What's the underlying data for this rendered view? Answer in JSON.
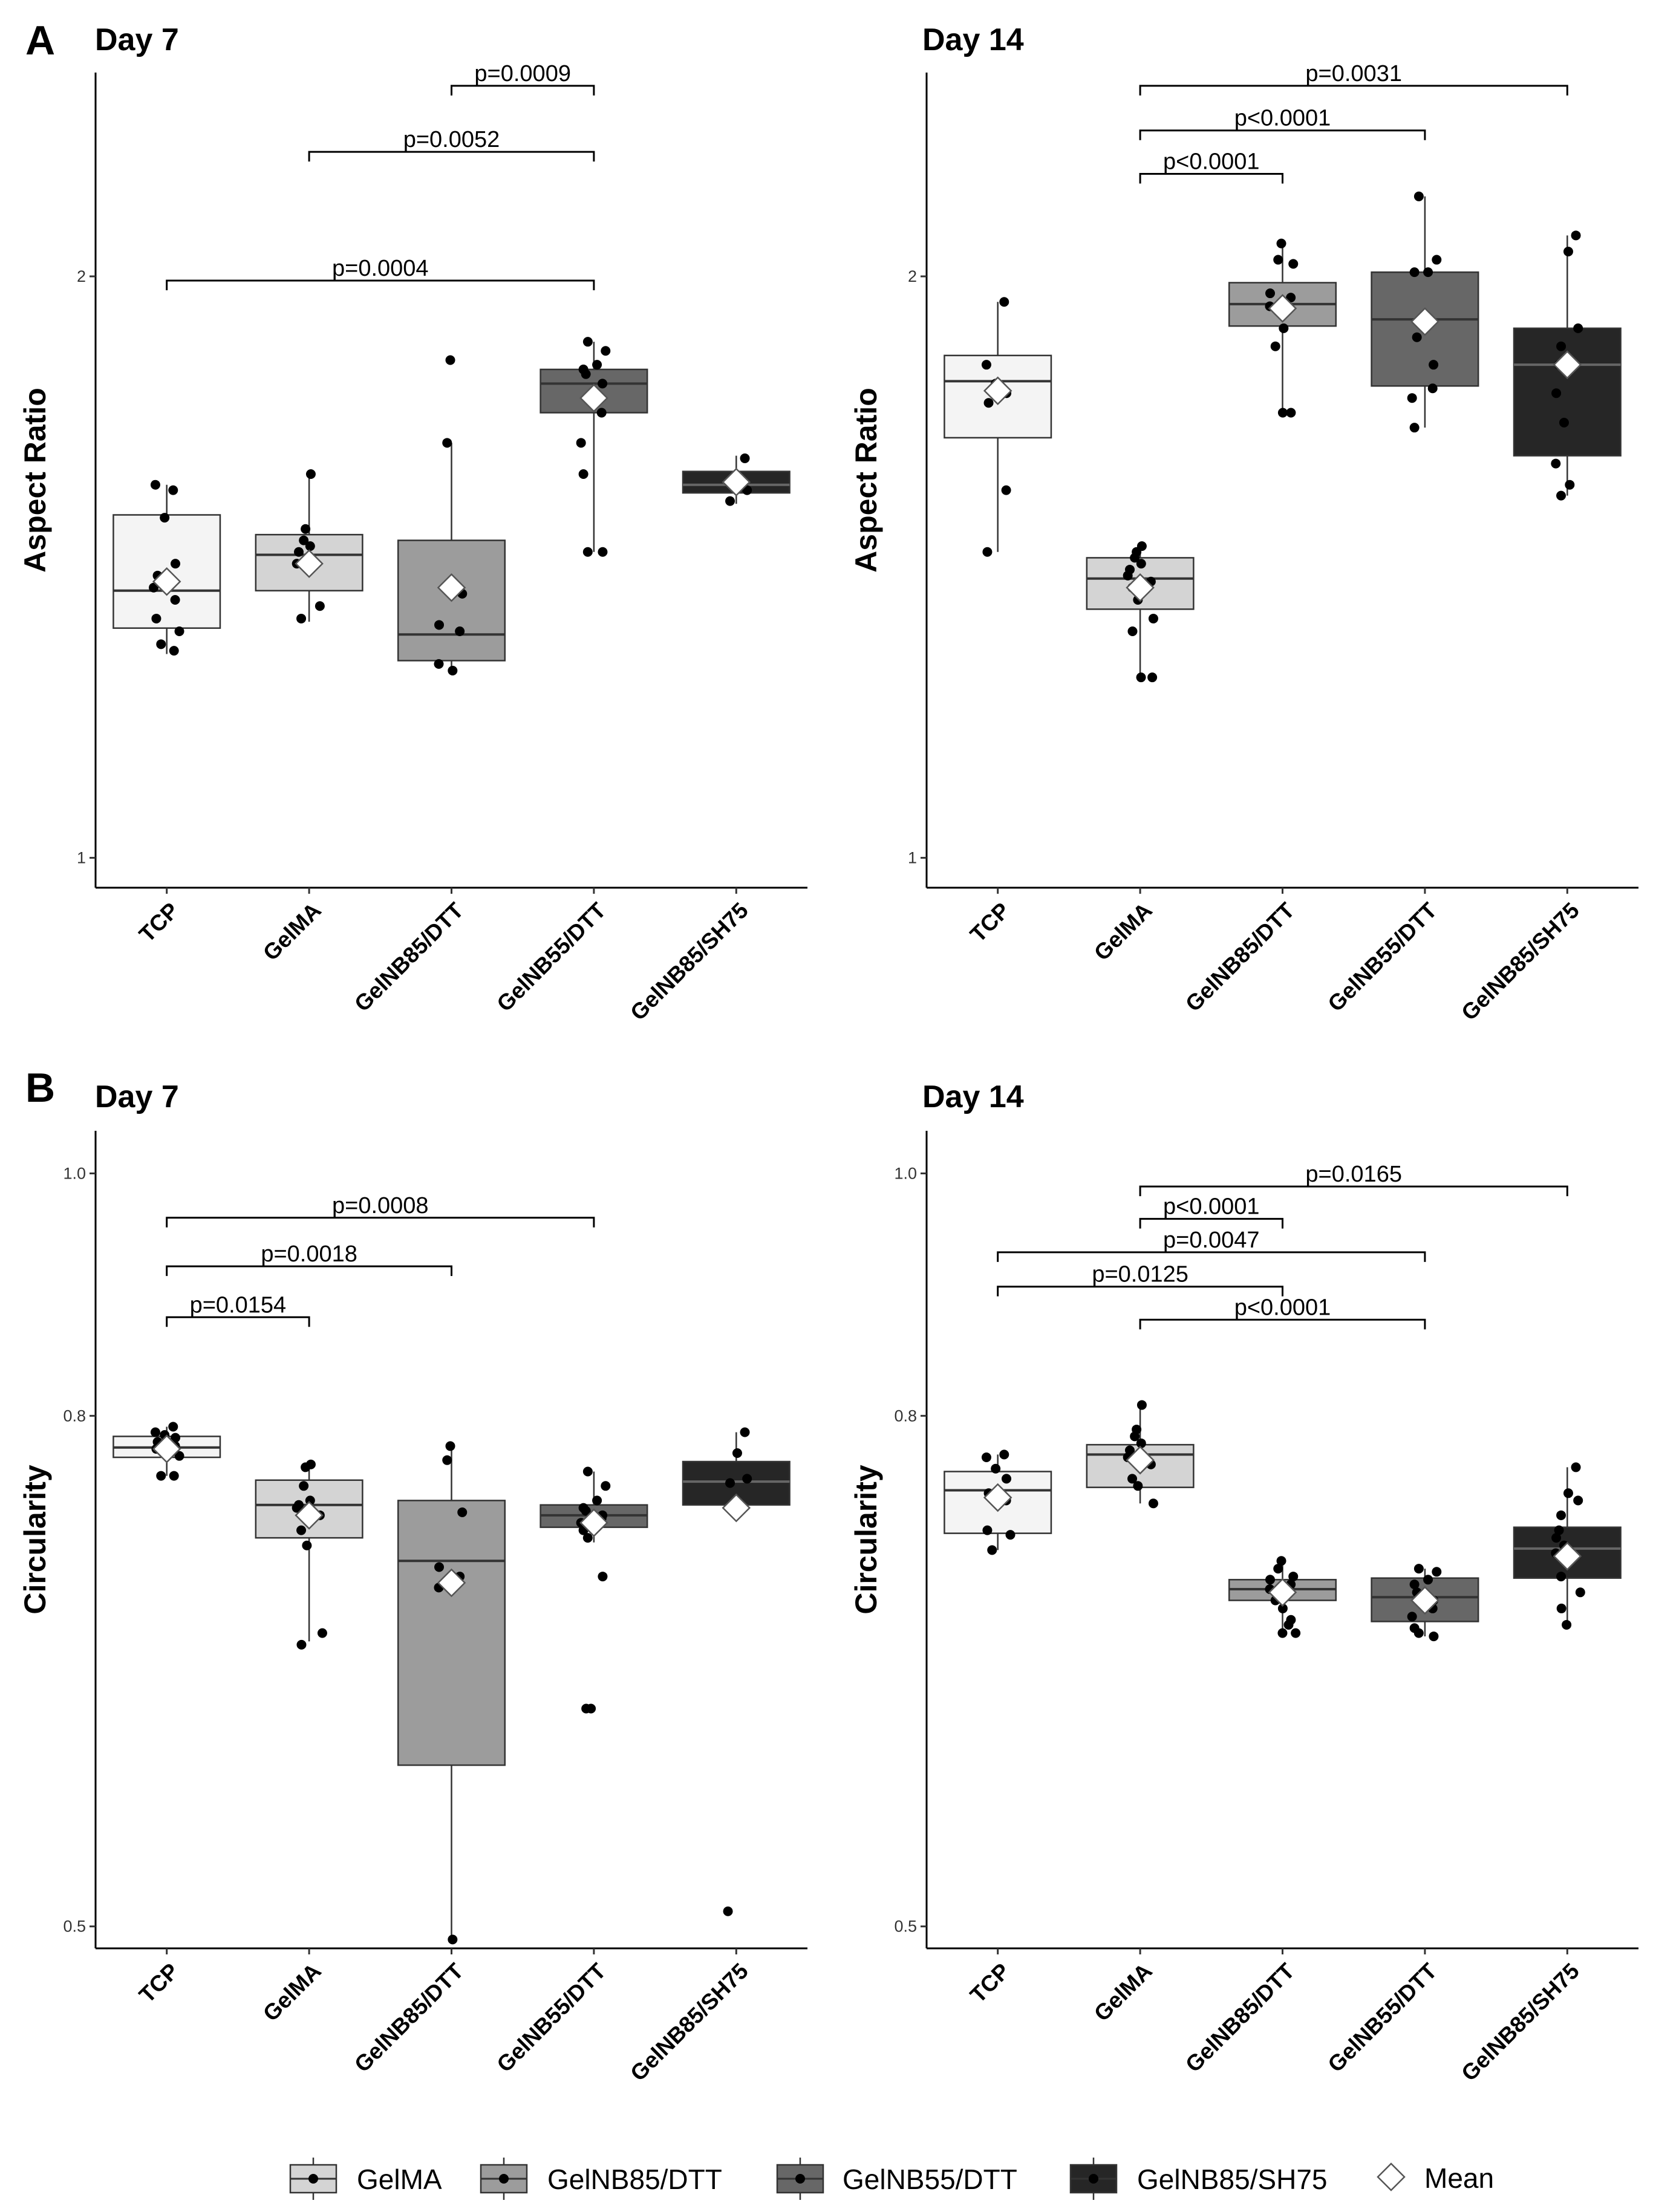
{
  "figure": {
    "panels": [
      {
        "letter": "A"
      },
      {
        "letter": "B"
      }
    ]
  },
  "legend": {
    "entries": [
      {
        "label": "GelMA",
        "fill": "#d4d4d4"
      },
      {
        "label": "GelNB85/DTT",
        "fill": "#9c9c9c"
      },
      {
        "label": "GelNB55/DTT",
        "fill": "#676767"
      },
      {
        "label": "GelNB85/SH75",
        "fill": "#262626"
      }
    ],
    "mean_label": "Mean"
  },
  "chart_data": [
    {
      "type": "box",
      "panel": "A",
      "title": "Day 7",
      "ylabel": "Aspect Ratio",
      "xlabel": "",
      "scale": "log",
      "ylim": [
        0.965,
        2.55
      ],
      "yticks": [
        1,
        2
      ],
      "ytick_labels": [
        "1",
        "2"
      ],
      "categories": [
        "TCP",
        "GelMA",
        "GelNB85/DTT",
        "GelNB55/DTT",
        "GelNB85/SH75"
      ],
      "fills": [
        "#f4f4f4",
        "#d4d4d4",
        "#9c9c9c",
        "#676767",
        "#262626"
      ],
      "boxes": [
        {
          "q1": 1.315,
          "median": 1.375,
          "q3": 1.505,
          "whisker_low": 1.275,
          "whisker_high": 1.56,
          "mean": 1.39
        },
        {
          "q1": 1.375,
          "median": 1.435,
          "q3": 1.47,
          "whisker_low": 1.325,
          "whisker_high": 1.58,
          "mean": 1.42
        },
        {
          "q1": 1.265,
          "median": 1.305,
          "q3": 1.46,
          "whisker_low": 1.25,
          "whisker_high": 1.64,
          "mean": 1.38
        },
        {
          "q1": 1.7,
          "median": 1.76,
          "q3": 1.79,
          "whisker_low": 1.44,
          "whisker_high": 1.85,
          "mean": 1.73
        },
        {
          "q1": 1.545,
          "median": 1.56,
          "q3": 1.585,
          "whisker_low": 1.525,
          "whisker_high": 1.615,
          "mean": 1.565
        }
      ],
      "points": [
        [
          1.55,
          1.56,
          1.5,
          1.42,
          1.4,
          1.36,
          1.33,
          1.31,
          1.29,
          1.28,
          1.38
        ],
        [
          1.58,
          1.48,
          1.46,
          1.45,
          1.44,
          1.42,
          1.35,
          1.33
        ],
        [
          1.81,
          1.64,
          1.37,
          1.32,
          1.31,
          1.26,
          1.25
        ],
        [
          1.85,
          1.83,
          1.8,
          1.79,
          1.78,
          1.76,
          1.7,
          1.64,
          1.58,
          1.44,
          1.44
        ],
        [
          1.61,
          1.57,
          1.55,
          1.53
        ]
      ],
      "comparisons": [
        {
          "from": "GelNB85/DTT",
          "to": "GelNB55/DTT",
          "label": "p=0.0009",
          "y": 2.51
        },
        {
          "from": "GelMA",
          "to": "GelNB55/DTT",
          "label": "p=0.0052",
          "y": 2.32
        },
        {
          "from": "TCP",
          "to": "GelNB55/DTT",
          "label": "p=0.0004",
          "y": 1.99
        }
      ]
    },
    {
      "type": "box",
      "panel": "A",
      "title": "Day 14",
      "ylabel": "Aspect Ratio",
      "xlabel": "",
      "scale": "log",
      "ylim": [
        0.965,
        2.55
      ],
      "yticks": [
        1,
        2
      ],
      "ytick_labels": [
        "1",
        "2"
      ],
      "categories": [
        "TCP",
        "GelMA",
        "GelNB85/DTT",
        "GelNB55/DTT",
        "GelNB85/SH75"
      ],
      "fills": [
        "#f4f4f4",
        "#d4d4d4",
        "#9c9c9c",
        "#676767",
        "#262626"
      ],
      "boxes": [
        {
          "q1": 1.65,
          "median": 1.765,
          "q3": 1.82,
          "whisker_low": 1.44,
          "whisker_high": 1.94,
          "mean": 1.745
        },
        {
          "q1": 1.345,
          "median": 1.395,
          "q3": 1.43,
          "whisker_low": 1.24,
          "whisker_high": 1.45,
          "mean": 1.38
        },
        {
          "q1": 1.885,
          "median": 1.935,
          "q3": 1.985,
          "whisker_low": 1.7,
          "whisker_high": 2.08,
          "mean": 1.925
        },
        {
          "q1": 1.755,
          "median": 1.9,
          "q3": 2.01,
          "whisker_low": 1.67,
          "whisker_high": 2.2,
          "mean": 1.895
        },
        {
          "q1": 1.615,
          "median": 1.8,
          "q3": 1.88,
          "whisker_low": 1.54,
          "whisker_high": 2.1,
          "mean": 1.8
        }
      ],
      "points": [
        [
          1.94,
          1.8,
          1.76,
          1.74,
          1.72,
          1.55,
          1.44
        ],
        [
          1.45,
          1.44,
          1.43,
          1.42,
          1.41,
          1.4,
          1.39,
          1.38,
          1.36,
          1.33,
          1.31,
          1.24,
          1.24
        ],
        [
          2.08,
          2.04,
          2.03,
          1.96,
          1.95,
          1.93,
          1.88,
          1.84,
          1.7,
          1.7
        ],
        [
          2.2,
          2.04,
          2.01,
          2.01,
          1.86,
          1.8,
          1.75,
          1.73,
          1.67
        ],
        [
          2.1,
          2.06,
          1.88,
          1.84,
          1.8,
          1.74,
          1.68,
          1.6,
          1.56,
          1.54
        ]
      ],
      "comparisons": [
        {
          "from": "GelMA",
          "to": "GelNB85/SH75",
          "label": "p=0.0031",
          "y": 2.51
        },
        {
          "from": "GelMA",
          "to": "GelNB55/DTT",
          "label": "p<0.0001",
          "y": 2.38
        },
        {
          "from": "GelMA",
          "to": "GelNB85/DTT",
          "label": "p<0.0001",
          "y": 2.26
        }
      ]
    },
    {
      "type": "box",
      "panel": "B",
      "title": "Day 7",
      "ylabel": "Circularity",
      "xlabel": "",
      "scale": "log",
      "ylim": [
        0.49,
        1.04
      ],
      "yticks": [
        0.5,
        0.8,
        1.0
      ],
      "ytick_labels": [
        "0.5",
        "0.8",
        "1.0"
      ],
      "categories": [
        "TCP",
        "GelMA",
        "GelNB85/DTT",
        "GelNB55/DTT",
        "GelNB85/SH75"
      ],
      "fills": [
        "#f4f4f4",
        "#d4d4d4",
        "#9c9c9c",
        "#676767",
        "#262626"
      ],
      "boxes": [
        {
          "q1": 0.77,
          "median": 0.777,
          "q3": 0.785,
          "whisker_low": 0.757,
          "whisker_high": 0.792,
          "mean": 0.776
        },
        {
          "q1": 0.715,
          "median": 0.737,
          "q3": 0.754,
          "whisker_low": 0.65,
          "whisker_high": 0.765,
          "mean": 0.73
        },
        {
          "q1": 0.58,
          "median": 0.7,
          "q3": 0.74,
          "whisker_low": 0.494,
          "whisker_high": 0.778,
          "mean": 0.686
        },
        {
          "q1": 0.722,
          "median": 0.73,
          "q3": 0.737,
          "whisker_low": 0.712,
          "whisker_high": 0.76,
          "mean": 0.725
        },
        {
          "q1": 0.737,
          "median": 0.753,
          "q3": 0.767,
          "whisker_low": 0.737,
          "whisker_high": 0.788,
          "mean": 0.735
        }
      ],
      "points": [
        [
          0.792,
          0.788,
          0.786,
          0.784,
          0.781,
          0.778,
          0.776,
          0.771,
          0.757,
          0.757
        ],
        [
          0.765,
          0.763,
          0.75,
          0.74,
          0.737,
          0.735,
          0.73,
          0.72,
          0.71,
          0.655,
          0.648
        ],
        [
          0.778,
          0.768,
          0.732,
          0.696,
          0.69,
          0.683,
          0.494
        ],
        [
          0.76,
          0.75,
          0.74,
          0.735,
          0.733,
          0.73,
          0.728,
          0.725,
          0.72,
          0.715,
          0.69,
          0.611,
          0.611
        ],
        [
          0.788,
          0.773,
          0.755,
          0.752,
          0.507
        ]
      ],
      "comparisons": [
        {
          "from": "TCP",
          "to": "GelNB55/DTT",
          "label": "p=0.0008",
          "y": 0.96
        },
        {
          "from": "TCP",
          "to": "GelNB85/DTT",
          "label": "p=0.0018",
          "y": 0.918
        },
        {
          "from": "TCP",
          "to": "GelMA",
          "label": "p=0.0154",
          "y": 0.876
        }
      ]
    },
    {
      "type": "box",
      "panel": "B",
      "title": "Day 14",
      "ylabel": "Circularity",
      "xlabel": "",
      "scale": "log",
      "ylim": [
        0.49,
        1.04
      ],
      "yticks": [
        0.5,
        0.8,
        1.0
      ],
      "ytick_labels": [
        "0.5",
        "0.8",
        "1.0"
      ],
      "categories": [
        "TCP",
        "GelMA",
        "GelNB85/DTT",
        "GelNB55/DTT",
        "GelNB85/SH75"
      ],
      "fills": [
        "#f4f4f4",
        "#d4d4d4",
        "#9c9c9c",
        "#676767",
        "#262626"
      ],
      "boxes": [
        {
          "q1": 0.718,
          "median": 0.747,
          "q3": 0.76,
          "whisker_low": 0.707,
          "whisker_high": 0.772,
          "mean": 0.742
        },
        {
          "q1": 0.749,
          "median": 0.772,
          "q3": 0.779,
          "whisker_low": 0.738,
          "whisker_high": 0.808,
          "mean": 0.768
        },
        {
          "q1": 0.675,
          "median": 0.682,
          "q3": 0.688,
          "whisker_low": 0.655,
          "whisker_high": 0.7,
          "mean": 0.68
        },
        {
          "q1": 0.662,
          "median": 0.677,
          "q3": 0.689,
          "whisker_low": 0.653,
          "whisker_high": 0.695,
          "mean": 0.675
        },
        {
          "q1": 0.689,
          "median": 0.708,
          "q3": 0.722,
          "whisker_low": 0.66,
          "whisker_high": 0.763,
          "mean": 0.703
        }
      ],
      "points": [
        [
          0.772,
          0.77,
          0.762,
          0.755,
          0.745,
          0.74,
          0.72,
          0.717,
          0.707
        ],
        [
          0.808,
          0.79,
          0.785,
          0.78,
          0.775,
          0.77,
          0.765,
          0.755,
          0.75,
          0.738
        ],
        [
          0.7,
          0.695,
          0.69,
          0.688,
          0.685,
          0.682,
          0.68,
          0.675,
          0.67,
          0.663,
          0.66,
          0.655,
          0.655
        ],
        [
          0.695,
          0.693,
          0.688,
          0.685,
          0.68,
          0.675,
          0.67,
          0.665,
          0.658,
          0.655,
          0.653
        ],
        [
          0.763,
          0.745,
          0.74,
          0.73,
          0.72,
          0.715,
          0.71,
          0.705,
          0.7,
          0.69,
          0.68,
          0.67,
          0.66
        ]
      ],
      "comparisons": [
        {
          "from": "GelMA",
          "to": "GelNB85/SH75",
          "label": "p=0.0165",
          "y": 0.988
        },
        {
          "from": "GelMA",
          "to": "GelNB85/DTT",
          "label": "p<0.0001",
          "y": 0.959
        },
        {
          "from": "TCP",
          "to": "GelNB55/DTT",
          "label": "p=0.0047",
          "y": 0.93
        },
        {
          "from": "TCP",
          "to": "GelNB85/DTT",
          "label": "p=0.0125",
          "y": 0.901
        },
        {
          "from": "GelMA",
          "to": "GelNB55/DTT",
          "label": "p<0.0001",
          "y": 0.874
        }
      ]
    }
  ]
}
